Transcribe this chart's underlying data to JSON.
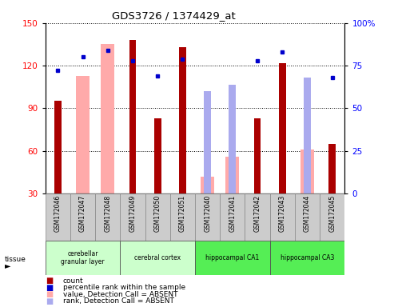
{
  "title": "GDS3726 / 1374429_at",
  "samples": [
    "GSM172046",
    "GSM172047",
    "GSM172048",
    "GSM172049",
    "GSM172050",
    "GSM172051",
    "GSM172040",
    "GSM172041",
    "GSM172042",
    "GSM172043",
    "GSM172044",
    "GSM172045"
  ],
  "count_values": [
    95,
    null,
    null,
    138,
    83,
    133,
    null,
    null,
    83,
    122,
    null,
    65
  ],
  "absent_value": [
    null,
    113,
    135,
    null,
    null,
    null,
    42,
    56,
    null,
    null,
    61,
    null
  ],
  "rank_absent": [
    null,
    null,
    null,
    null,
    null,
    null,
    60,
    64,
    null,
    null,
    68,
    null
  ],
  "blue_rank": [
    72,
    80,
    84,
    78,
    69,
    79,
    null,
    null,
    78,
    83,
    null,
    68
  ],
  "ylim_left": [
    30,
    150
  ],
  "ylim_right": [
    0,
    100
  ],
  "y_ticks_left": [
    30,
    60,
    90,
    120,
    150
  ],
  "y_ticks_right": [
    0,
    25,
    50,
    75,
    100
  ],
  "tissues": [
    {
      "label": "cerebellar\ngranular layer",
      "start": 0,
      "end": 3,
      "color": "#ccffcc"
    },
    {
      "label": "cerebral cortex",
      "start": 3,
      "end": 6,
      "color": "#ccffcc"
    },
    {
      "label": "hippocampal CA1",
      "start": 6,
      "end": 9,
      "color": "#55ee55"
    },
    {
      "label": "hippocampal CA3",
      "start": 9,
      "end": 12,
      "color": "#55ee55"
    }
  ],
  "bar_width": 0.55,
  "narrow_bar_width": 0.28,
  "count_color": "#aa0000",
  "absent_bar_color": "#ffaaaa",
  "absent_rank_color": "#aaaaee",
  "blue_dot_color": "#0000cc",
  "grid_color": "#000000",
  "label_bg_color": "#cccccc"
}
